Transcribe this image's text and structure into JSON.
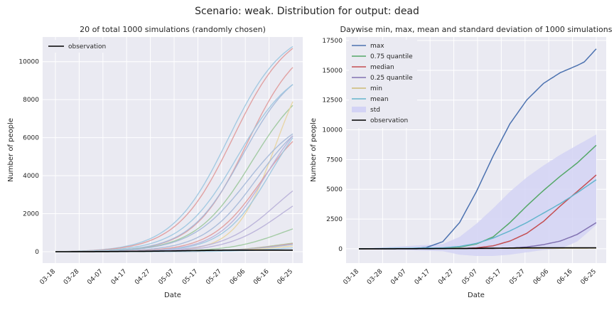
{
  "figure": {
    "suptitle": "Scenario: weak. Distribution for output: dead"
  },
  "chart_data": [
    {
      "type": "line",
      "title": "20 of total 1000 simulations (randomly chosen)",
      "xlabel": "Date",
      "ylabel": "Number of people",
      "x_ticks": [
        "03-18",
        "03-28",
        "04-07",
        "04-17",
        "04-27",
        "05-07",
        "05-17",
        "05-27",
        "06-06",
        "06-16",
        "06-25"
      ],
      "x_range_days": [
        0,
        99
      ],
      "ylim": [
        -600,
        11300
      ],
      "y_ticks": [
        0,
        2000,
        4000,
        6000,
        8000,
        10000
      ],
      "legend": {
        "position": "top-left",
        "entries": [
          "observation"
        ]
      },
      "observation": {
        "name": "observation",
        "color": "#000000",
        "final_value": 80
      },
      "series": [
        {
          "final": 10800,
          "mid": 72,
          "k": 0.085,
          "color": "#9cc7e0"
        },
        {
          "final": 10700,
          "mid": 74,
          "k": 0.085,
          "color": "#e09a9a"
        },
        {
          "final": 9700,
          "mid": 80,
          "k": 0.09,
          "color": "#e09a9a"
        },
        {
          "final": 8800,
          "mid": 78,
          "k": 0.09,
          "color": "#a4b8d8"
        },
        {
          "final": 8800,
          "mid": 76,
          "k": 0.085,
          "color": "#9cc7e0"
        },
        {
          "final": 7700,
          "mid": 82,
          "k": 0.085,
          "color": "#9cc89c"
        },
        {
          "final": 7900,
          "mid": 92,
          "k": 0.12,
          "color": "#e8d4a0"
        },
        {
          "final": 6200,
          "mid": 80,
          "k": 0.085,
          "color": "#a4b8d8"
        },
        {
          "final": 6100,
          "mid": 84,
          "k": 0.09,
          "color": "#a4b8d8"
        },
        {
          "final": 5800,
          "mid": 86,
          "k": 0.095,
          "color": "#e09a9a"
        },
        {
          "final": 6100,
          "mid": 88,
          "k": 0.1,
          "color": "#b8b0d8"
        },
        {
          "final": 6000,
          "mid": 90,
          "k": 0.1,
          "color": "#9cc7e0"
        },
        {
          "final": 3200,
          "mid": 92,
          "k": 0.09,
          "color": "#b8b0d8"
        },
        {
          "final": 2400,
          "mid": 94,
          "k": 0.09,
          "color": "#b8b0d8"
        },
        {
          "final": 1200,
          "mid": 95,
          "k": 0.09,
          "color": "#9cc89c"
        },
        {
          "final": 450,
          "mid": 95,
          "k": 0.09,
          "color": "#9cc89c"
        },
        {
          "final": 420,
          "mid": 96,
          "k": 0.09,
          "color": "#e09a9a"
        },
        {
          "final": 380,
          "mid": 96,
          "k": 0.09,
          "color": "#a4b8d8"
        },
        {
          "final": 300,
          "mid": 97,
          "k": 0.09,
          "color": "#e8d4a0"
        },
        {
          "final": 200,
          "mid": 98,
          "k": 0.09,
          "color": "#9cc7e0"
        }
      ]
    },
    {
      "type": "line",
      "title": "Daywise min, max, mean and standard deviation of 1000 simulations",
      "xlabel": "Date",
      "ylabel": "Number of people",
      "x_ticks": [
        "03-18",
        "03-28",
        "04-07",
        "04-17",
        "04-27",
        "05-07",
        "05-17",
        "05-27",
        "06-06",
        "06-16",
        "06-25"
      ],
      "x_range_days": [
        0,
        99
      ],
      "ylim": [
        -1200,
        17800
      ],
      "y_ticks": [
        0,
        2500,
        5000,
        7500,
        10000,
        12500,
        15000,
        17500
      ],
      "legend": {
        "position": "top-left"
      },
      "series": [
        {
          "name": "max",
          "color": "#4c72b0",
          "points": [
            [
              0,
              0
            ],
            [
              20,
              20
            ],
            [
              28,
              100
            ],
            [
              35,
              600
            ],
            [
              42,
              2200
            ],
            [
              49,
              4800
            ],
            [
              56,
              7800
            ],
            [
              63,
              10500
            ],
            [
              70,
              12500
            ],
            [
              77,
              13900
            ],
            [
              84,
              14800
            ],
            [
              91,
              15400
            ],
            [
              94,
              15700
            ],
            [
              99,
              16800
            ]
          ]
        },
        {
          "name": "0.75 quantile",
          "color": "#55a868",
          "points": [
            [
              0,
              0
            ],
            [
              35,
              50
            ],
            [
              42,
              150
            ],
            [
              49,
              400
            ],
            [
              56,
              1000
            ],
            [
              63,
              2200
            ],
            [
              70,
              3600
            ],
            [
              77,
              4900
            ],
            [
              84,
              6100
            ],
            [
              91,
              7200
            ],
            [
              99,
              8700
            ]
          ]
        },
        {
          "name": "median",
          "color": "#c44e52",
          "points": [
            [
              0,
              0
            ],
            [
              42,
              20
            ],
            [
              49,
              80
            ],
            [
              56,
              250
            ],
            [
              63,
              650
            ],
            [
              70,
              1300
            ],
            [
              77,
              2300
            ],
            [
              84,
              3600
            ],
            [
              91,
              4800
            ],
            [
              99,
              6200
            ]
          ]
        },
        {
          "name": "0.25 quantile",
          "color": "#8172b2",
          "points": [
            [
              0,
              0
            ],
            [
              56,
              20
            ],
            [
              63,
              60
            ],
            [
              70,
              150
            ],
            [
              77,
              350
            ],
            [
              84,
              650
            ],
            [
              91,
              1200
            ],
            [
              99,
              2200
            ]
          ]
        },
        {
          "name": "min",
          "color": "#ccb974",
          "points": [
            [
              0,
              0
            ],
            [
              99,
              60
            ]
          ]
        },
        {
          "name": "mean",
          "color": "#64b5cd",
          "points": [
            [
              0,
              0
            ],
            [
              35,
              80
            ],
            [
              42,
              200
            ],
            [
              49,
              450
            ],
            [
              56,
              900
            ],
            [
              63,
              1500
            ],
            [
              70,
              2200
            ],
            [
              77,
              3000
            ],
            [
              84,
              3800
            ],
            [
              91,
              4700
            ],
            [
              99,
              5800
            ]
          ]
        }
      ],
      "std": {
        "name": "std",
        "color": "#d3d3f5",
        "upper": [
          [
            0,
            0
          ],
          [
            35,
            400
          ],
          [
            42,
            1000
          ],
          [
            49,
            2100
          ],
          [
            56,
            3400
          ],
          [
            63,
            4800
          ],
          [
            70,
            6000
          ],
          [
            77,
            7000
          ],
          [
            84,
            7900
          ],
          [
            91,
            8700
          ],
          [
            99,
            9600
          ]
        ],
        "lower": [
          [
            0,
            0
          ],
          [
            35,
            -200
          ],
          [
            42,
            -500
          ],
          [
            49,
            -600
          ],
          [
            56,
            -600
          ],
          [
            63,
            -500
          ],
          [
            70,
            -300
          ],
          [
            77,
            -100
          ],
          [
            84,
            0
          ],
          [
            91,
            600
          ],
          [
            99,
            2000
          ]
        ]
      },
      "observation": {
        "name": "observation",
        "color": "#000000",
        "final_value": 80
      }
    }
  ]
}
